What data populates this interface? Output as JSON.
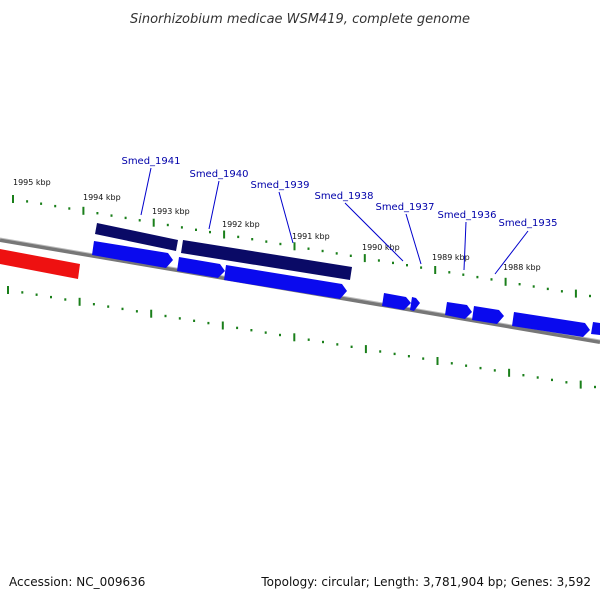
{
  "title": "Sinorhizobium medicae WSM419, complete genome",
  "footer": {
    "accession": "Accession: NC_009636",
    "summary": "Topology: circular; Length: 3,781,904 bp; Genes: 3,592"
  },
  "colors": {
    "backbone": "#777777",
    "tick": "#1a7f1a",
    "gene_forward": "#0a0aee",
    "gene_reverse": "#0a0a66",
    "highlight": "#ee1111",
    "label": "#0000aa"
  },
  "kbp_labels": [
    "1995 kbp",
    "1994 kbp",
    "1993 kbp",
    "1992 kbp",
    "1991 kbp",
    "1990 kbp",
    "1989 kbp",
    "1988 kbp"
  ],
  "gene_labels": [
    "Smed_1941",
    "Smed_1940",
    "Smed_1939",
    "Smed_1938",
    "Smed_1937",
    "Smed_1936",
    "Smed_1935"
  ]
}
